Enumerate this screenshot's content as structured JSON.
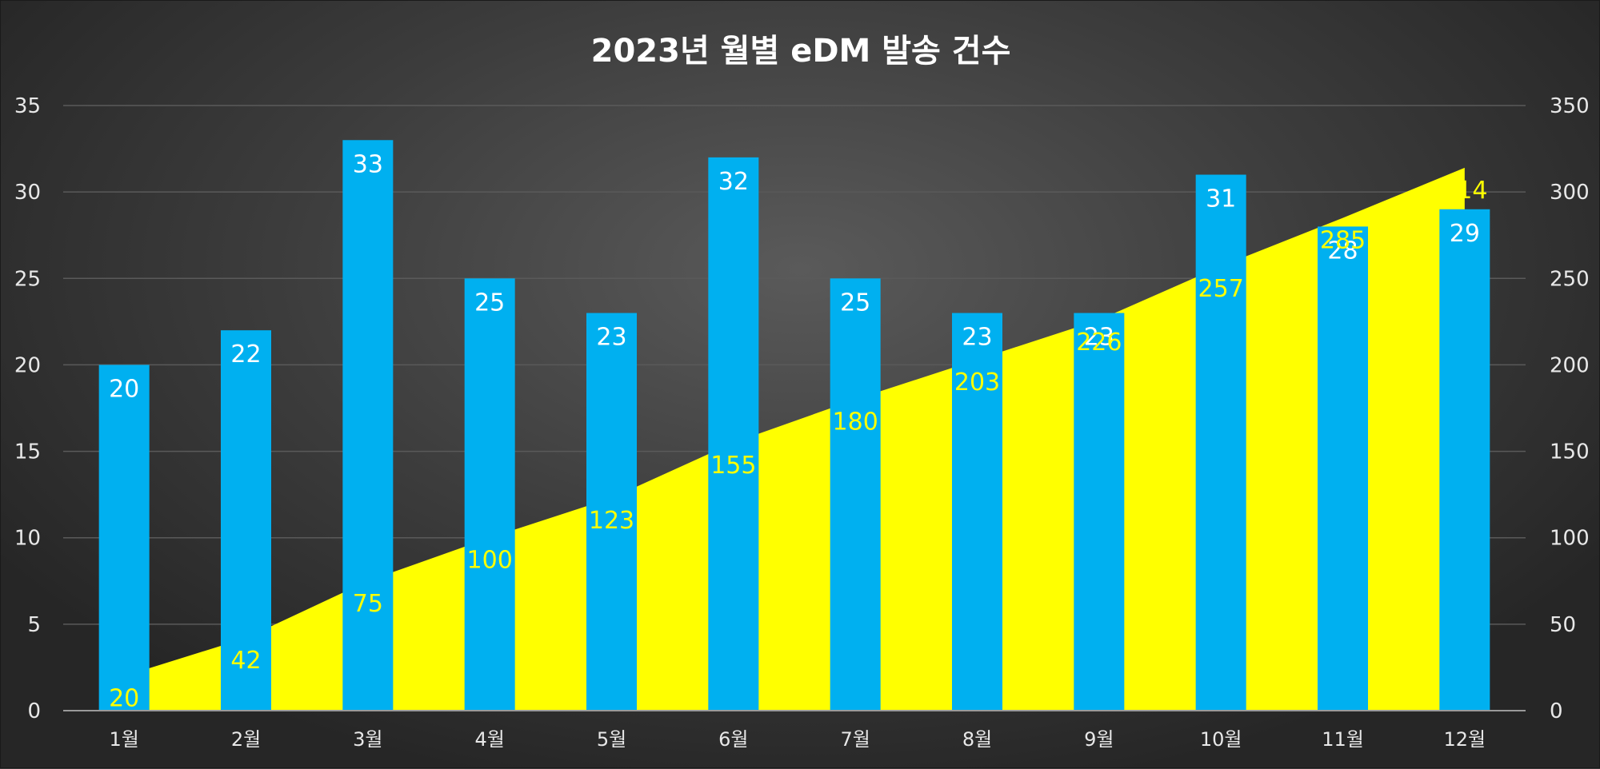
{
  "chart_data": {
    "type": "bar",
    "title": "2023년 월별 eDM 발송 건수",
    "categories": [
      "1월",
      "2월",
      "3월",
      "4월",
      "5월",
      "6월",
      "7월",
      "8월",
      "9월",
      "10월",
      "11월",
      "12월"
    ],
    "series": [
      {
        "chart_type": "bar",
        "axis": "left",
        "values": [
          20,
          22,
          33,
          25,
          23,
          32,
          25,
          23,
          23,
          31,
          28,
          29
        ],
        "color": "#00b0f0"
      },
      {
        "chart_type": "area",
        "axis": "right",
        "values": [
          20,
          42,
          75,
          100,
          123,
          155,
          180,
          203,
          226,
          257,
          285,
          314
        ],
        "color": "#ffff00"
      }
    ],
    "y_left": {
      "min": 0,
      "max": 35,
      "step": 5,
      "ticks": [
        "0",
        "5",
        "10",
        "15",
        "20",
        "25",
        "30",
        "35"
      ]
    },
    "y_right": {
      "min": 0,
      "max": 350,
      "step": 50,
      "ticks": [
        "0",
        "50",
        "100",
        "150",
        "200",
        "250",
        "300",
        "350"
      ]
    },
    "xlabel": "",
    "ylabel": "",
    "grid": true,
    "legend": "none",
    "data_labels": true,
    "colors": {
      "background": "#3a3a3a",
      "bar": "#00b0f0",
      "area": "#ffff00",
      "gridline": "#5a5a5a",
      "bar_label": "#ffffff",
      "area_label": "#ffff00",
      "text": "#ffffff"
    }
  }
}
